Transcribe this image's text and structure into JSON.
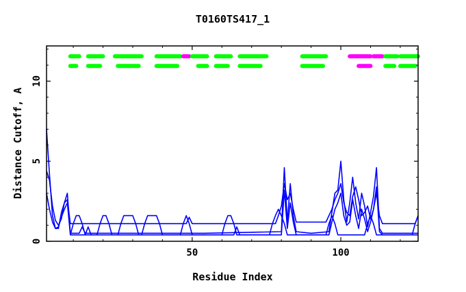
{
  "chart_data": {
    "type": "line",
    "title": "T0160TS417_1",
    "xlabel": "Residue Index",
    "ylabel": "Distance Cutoff, A",
    "xlim": [
      1,
      126
    ],
    "ylim": [
      0,
      12.2
    ],
    "x_ticks": [
      50,
      100
    ],
    "y_ticks": [
      0,
      5,
      10
    ],
    "grid": false,
    "legend": "none",
    "line_color": "#0000ff",
    "series": [
      {
        "points": [
          [
            1,
            4.4
          ],
          [
            2,
            3.8
          ],
          [
            3,
            2.2
          ],
          [
            4,
            1.3
          ],
          [
            5,
            1.0
          ],
          [
            6,
            1.4
          ],
          [
            7,
            2.4
          ],
          [
            8,
            2.6
          ],
          [
            9,
            1.1
          ],
          [
            20,
            1.1
          ],
          [
            48,
            1.1
          ],
          [
            49,
            1.5
          ],
          [
            50,
            1.1
          ],
          [
            78,
            1.1
          ],
          [
            79,
            1.6
          ],
          [
            80,
            2.2
          ],
          [
            81,
            3.6
          ],
          [
            82,
            2.6
          ],
          [
            83,
            3.0
          ],
          [
            84,
            2.0
          ],
          [
            85,
            1.2
          ],
          [
            95,
            1.2
          ],
          [
            96,
            1.6
          ],
          [
            97,
            2.0
          ],
          [
            98,
            2.6
          ],
          [
            99,
            3.0
          ],
          [
            100,
            3.6
          ],
          [
            101,
            2.4
          ],
          [
            102,
            1.8
          ],
          [
            103,
            1.6
          ],
          [
            104,
            2.8
          ],
          [
            105,
            3.4
          ],
          [
            106,
            2.6
          ],
          [
            107,
            1.6
          ],
          [
            108,
            1.8
          ],
          [
            109,
            2.2
          ],
          [
            110,
            1.4
          ],
          [
            111,
            2.0
          ],
          [
            112,
            3.0
          ],
          [
            113,
            1.6
          ],
          [
            114,
            1.1
          ],
          [
            125,
            1.1
          ],
          [
            126,
            1.6
          ]
        ]
      },
      {
        "points": [
          [
            1,
            7.0
          ],
          [
            2,
            4.2
          ],
          [
            3,
            1.6
          ],
          [
            4,
            0.8
          ],
          [
            5,
            0.8
          ],
          [
            6,
            1.8
          ],
          [
            7,
            2.4
          ],
          [
            8,
            3.0
          ],
          [
            9,
            0.5
          ],
          [
            12,
            0.5
          ],
          [
            13,
            0.9
          ],
          [
            14,
            0.5
          ],
          [
            54,
            0.5
          ],
          [
            80,
            0.6
          ],
          [
            81,
            4.6
          ],
          [
            82,
            1.2
          ],
          [
            83,
            3.6
          ],
          [
            84,
            1.6
          ],
          [
            85,
            0.6
          ],
          [
            90,
            0.5
          ],
          [
            96,
            0.6
          ],
          [
            97,
            1.8
          ],
          [
            98,
            3.0
          ],
          [
            99,
            3.2
          ],
          [
            100,
            5.0
          ],
          [
            101,
            2.6
          ],
          [
            102,
            1.2
          ],
          [
            103,
            2.4
          ],
          [
            104,
            4.0
          ],
          [
            105,
            2.4
          ],
          [
            106,
            1.4
          ],
          [
            107,
            3.0
          ],
          [
            108,
            2.2
          ],
          [
            109,
            0.9
          ],
          [
            110,
            1.8
          ],
          [
            111,
            2.8
          ],
          [
            112,
            4.6
          ],
          [
            113,
            0.8
          ],
          [
            114,
            0.5
          ],
          [
            126,
            0.5
          ]
        ]
      },
      {
        "points": [
          [
            1,
            3.0
          ],
          [
            2,
            2.0
          ],
          [
            3,
            1.2
          ],
          [
            4,
            0.8
          ],
          [
            5,
            0.9
          ],
          [
            6,
            1.5
          ],
          [
            7,
            2.0
          ],
          [
            8,
            2.4
          ],
          [
            9,
            0.4
          ],
          [
            14,
            0.4
          ],
          [
            15,
            0.9
          ],
          [
            16,
            0.4
          ],
          [
            64,
            0.4
          ],
          [
            65,
            0.9
          ],
          [
            66,
            0.4
          ],
          [
            80,
            0.4
          ],
          [
            81,
            3.2
          ],
          [
            82,
            0.8
          ],
          [
            83,
            2.4
          ],
          [
            84,
            1.2
          ],
          [
            85,
            0.4
          ],
          [
            96,
            0.4
          ],
          [
            97,
            1.2
          ],
          [
            98,
            2.0
          ],
          [
            99,
            2.4
          ],
          [
            100,
            3.0
          ],
          [
            101,
            1.6
          ],
          [
            102,
            1.0
          ],
          [
            103,
            1.2
          ],
          [
            104,
            2.6
          ],
          [
            105,
            1.6
          ],
          [
            106,
            0.8
          ],
          [
            107,
            2.0
          ],
          [
            108,
            1.4
          ],
          [
            109,
            0.6
          ],
          [
            110,
            1.2
          ],
          [
            111,
            2.0
          ],
          [
            112,
            3.4
          ],
          [
            113,
            0.6
          ],
          [
            114,
            0.4
          ],
          [
            126,
            0.4
          ]
        ]
      },
      {
        "points": [
          [
            9,
            0.4
          ],
          [
            10,
            1.1
          ],
          [
            11,
            1.6
          ],
          [
            12,
            1.6
          ],
          [
            13,
            1.1
          ],
          [
            14,
            0.4
          ],
          [
            18,
            0.4
          ],
          [
            19,
            1.1
          ],
          [
            20,
            1.6
          ],
          [
            21,
            1.6
          ],
          [
            22,
            1.1
          ],
          [
            23,
            0.4
          ],
          [
            25,
            0.4
          ],
          [
            26,
            1.1
          ],
          [
            27,
            1.6
          ],
          [
            30,
            1.6
          ],
          [
            31,
            1.1
          ],
          [
            32,
            0.4
          ],
          [
            33,
            0.4
          ],
          [
            34,
            1.1
          ],
          [
            35,
            1.6
          ],
          [
            38,
            1.6
          ],
          [
            39,
            1.1
          ],
          [
            40,
            0.4
          ],
          [
            46,
            0.4
          ],
          [
            47,
            1.1
          ],
          [
            48,
            1.6
          ],
          [
            49,
            1.1
          ],
          [
            50,
            0.4
          ],
          [
            60,
            0.4
          ],
          [
            61,
            1.1
          ],
          [
            62,
            1.6
          ],
          [
            63,
            1.6
          ],
          [
            64,
            1.1
          ],
          [
            65,
            0.4
          ],
          [
            76,
            0.4
          ],
          [
            77,
            1.1
          ],
          [
            78,
            1.6
          ],
          [
            79,
            2.0
          ],
          [
            80,
            1.6
          ],
          [
            81,
            1.1
          ],
          [
            82,
            0.4
          ],
          [
            95,
            0.4
          ],
          [
            96,
            1.1
          ],
          [
            97,
            1.6
          ],
          [
            98,
            1.1
          ],
          [
            99,
            0.4
          ],
          [
            108,
            0.4
          ],
          [
            109,
            1.1
          ],
          [
            110,
            1.6
          ],
          [
            111,
            1.1
          ],
          [
            112,
            0.4
          ],
          [
            124,
            0.4
          ],
          [
            125,
            1.1
          ],
          [
            126,
            1.6
          ]
        ]
      }
    ],
    "segment_rows": [
      {
        "y": 11.55,
        "segments": [
          {
            "start": 9,
            "end": 12,
            "color": "#00ff00"
          },
          {
            "start": 15,
            "end": 20,
            "color": "#00ff00"
          },
          {
            "start": 24,
            "end": 33,
            "color": "#00ff00"
          },
          {
            "start": 38,
            "end": 46,
            "color": "#00ff00"
          },
          {
            "start": 47,
            "end": 49,
            "color": "#ff00ff"
          },
          {
            "start": 50,
            "end": 55,
            "color": "#00ff00"
          },
          {
            "start": 58,
            "end": 63,
            "color": "#00ff00"
          },
          {
            "start": 66,
            "end": 75,
            "color": "#00ff00"
          },
          {
            "start": 87,
            "end": 95,
            "color": "#00ff00"
          },
          {
            "start": 103,
            "end": 110,
            "color": "#ff00ff"
          },
          {
            "start": 111,
            "end": 114,
            "color": "#ff00ff"
          },
          {
            "start": 115,
            "end": 119,
            "color": "#00ff00"
          },
          {
            "start": 120,
            "end": 126,
            "color": "#00ff00"
          }
        ]
      },
      {
        "y": 10.95,
        "segments": [
          {
            "start": 9,
            "end": 11,
            "color": "#00ff00"
          },
          {
            "start": 15,
            "end": 19,
            "color": "#00ff00"
          },
          {
            "start": 25,
            "end": 32,
            "color": "#00ff00"
          },
          {
            "start": 38,
            "end": 45,
            "color": "#00ff00"
          },
          {
            "start": 52,
            "end": 55,
            "color": "#00ff00"
          },
          {
            "start": 58,
            "end": 62,
            "color": "#00ff00"
          },
          {
            "start": 66,
            "end": 73,
            "color": "#00ff00"
          },
          {
            "start": 87,
            "end": 94,
            "color": "#00ff00"
          },
          {
            "start": 106,
            "end": 110,
            "color": "#ff00ff"
          },
          {
            "start": 115,
            "end": 118,
            "color": "#00ff00"
          },
          {
            "start": 120,
            "end": 125,
            "color": "#00ff00"
          }
        ]
      }
    ]
  }
}
